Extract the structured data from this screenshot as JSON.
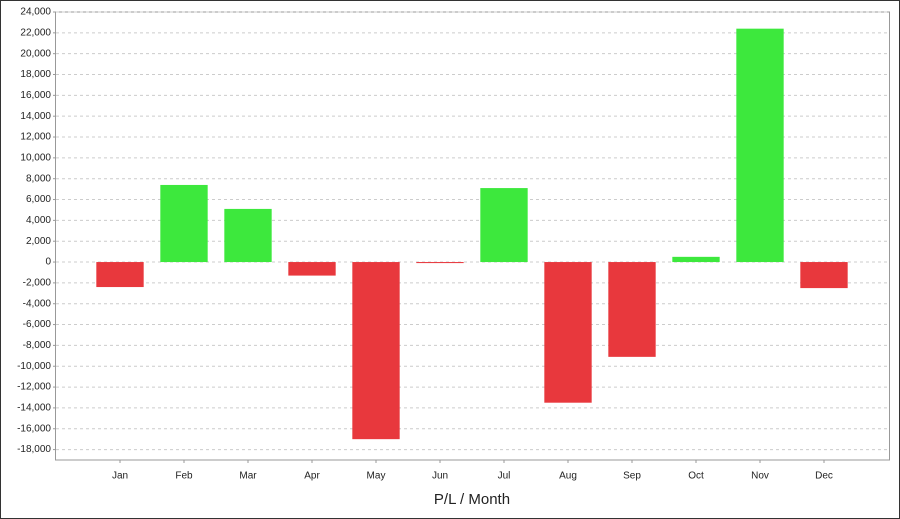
{
  "chart_data": {
    "type": "bar",
    "x_label": "P/L / Month",
    "categories": [
      "Jan",
      "Feb",
      "Mar",
      "Apr",
      "May",
      "Jun",
      "Jul",
      "Aug",
      "Sep",
      "Oct",
      "Nov",
      "Dec"
    ],
    "values": [
      -2400,
      7400,
      5100,
      -1300,
      -17000,
      -100,
      7100,
      -13500,
      -9100,
      500,
      22400,
      -2500
    ],
    "positive_color": "#3de83d",
    "negative_color": "#e8383d",
    "ylim": [
      -19000,
      24000
    ],
    "yticks": [
      {
        "value": -18000,
        "label": "-18,000"
      },
      {
        "value": -16000,
        "label": "-16,000"
      },
      {
        "value": -14000,
        "label": "-14,000"
      },
      {
        "value": -12000,
        "label": "-12,000"
      },
      {
        "value": -10000,
        "label": "-10,000"
      },
      {
        "value": -8000,
        "label": "-8,000"
      },
      {
        "value": -6000,
        "label": "-6,000"
      },
      {
        "value": -4000,
        "label": "-4,000"
      },
      {
        "value": -2000,
        "label": "-2,000"
      },
      0,
      {
        "value": 2000,
        "label": "2,000"
      },
      {
        "value": 4000,
        "label": "4,000"
      },
      {
        "value": 6000,
        "label": "6,000"
      },
      {
        "value": 8000,
        "label": "8,000"
      },
      {
        "value": 10000,
        "label": "10,000"
      },
      {
        "value": 12000,
        "label": "12,000"
      },
      {
        "value": 14000,
        "label": "14,000"
      },
      {
        "value": 16000,
        "label": "16,000"
      },
      {
        "value": 18000,
        "label": "18,000"
      },
      {
        "value": 20000,
        "label": "20,000"
      },
      {
        "value": 22000,
        "label": "22,000"
      },
      {
        "value": 24000,
        "label": "24,000"
      }
    ],
    "grid": true
  }
}
